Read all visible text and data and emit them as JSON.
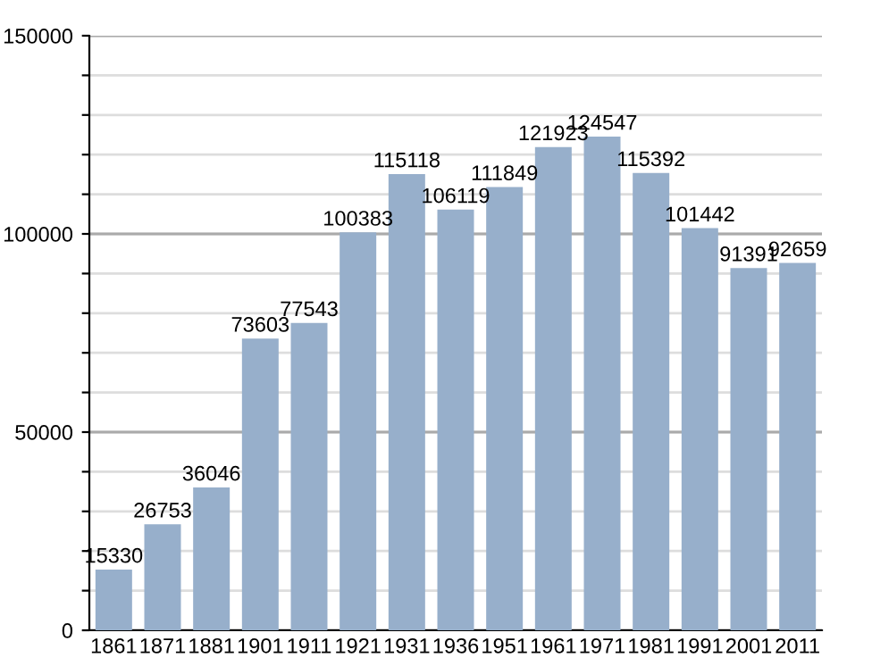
{
  "chart_data": {
    "type": "bar",
    "categories": [
      "1861",
      "1871",
      "1881",
      "1901",
      "1911",
      "1921",
      "1931",
      "1936",
      "1951",
      "1961",
      "1971",
      "1981",
      "1991",
      "2001",
      "2011"
    ],
    "values": [
      15330,
      26753,
      36046,
      73603,
      77543,
      100383,
      115118,
      106119,
      111849,
      121923,
      124547,
      115392,
      101442,
      91391,
      92659
    ],
    "color": "#97afcb",
    "ylim": [
      0,
      150000
    ],
    "yticks": [
      0,
      {
        "value": 10000,
        "label": null
      },
      {
        "value": 20000,
        "label": null
      },
      {
        "value": 30000,
        "label": null
      },
      {
        "value": 40000,
        "label": null
      },
      50000,
      {
        "value": 60000,
        "label": null
      },
      {
        "value": 70000,
        "label": null
      },
      {
        "value": 80000,
        "label": null
      },
      {
        "value": 90000,
        "label": null
      },
      100000,
      {
        "value": 110000,
        "label": null
      },
      {
        "value": 120000,
        "label": null
      },
      {
        "value": 130000,
        "label": null
      },
      {
        "value": 140000,
        "label": null
      },
      150000
    ],
    "grid": "y",
    "data_labels": true
  }
}
